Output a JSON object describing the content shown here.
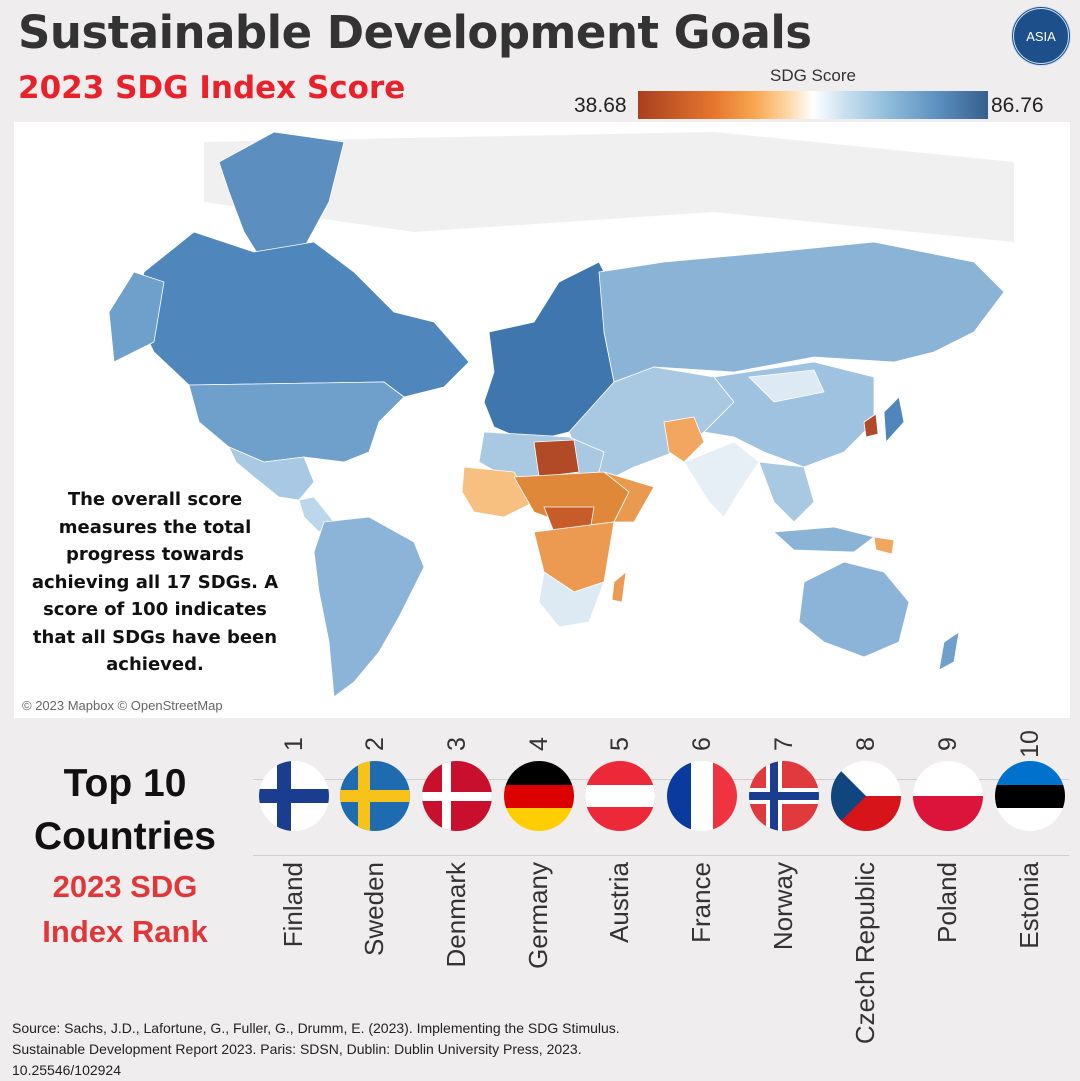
{
  "header": {
    "title": "Sustainable Development Goals",
    "subtitle": "2023 SDG Index Score",
    "logo_text": "ASIA"
  },
  "legend": {
    "title": "SDG Score",
    "min": "38.68",
    "max": "86.76",
    "colors": [
      "#a8401f",
      "#e6772f",
      "#fdd9a8",
      "#ffffff",
      "#8dbad9",
      "#365f8c"
    ]
  },
  "map": {
    "note": "The overall score measures the total progress towards achieving all 17 SDGs. A score of 100 indicates that all SDGs have been achieved.",
    "credit": "© 2023 Mapbox © OpenStreetMap"
  },
  "ranking": {
    "title_line1": "Top 10",
    "title_line2": "Countries",
    "subtitle_line1": "2023 SDG",
    "subtitle_line2": "Index Rank",
    "countries": [
      {
        "rank": "1",
        "name": "Finland"
      },
      {
        "rank": "2",
        "name": "Sweden"
      },
      {
        "rank": "3",
        "name": "Denmark"
      },
      {
        "rank": "4",
        "name": "Germany"
      },
      {
        "rank": "5",
        "name": "Austria"
      },
      {
        "rank": "6",
        "name": "France"
      },
      {
        "rank": "7",
        "name": "Norway"
      },
      {
        "rank": "8",
        "name": "Czech Republic"
      },
      {
        "rank": "9",
        "name": "Poland"
      },
      {
        "rank": "10",
        "name": "Estonia"
      }
    ]
  },
  "source": {
    "line1": "Source: Sachs, J.D., Lafortune, G., Fuller, G., Drumm, E. (2023). Implementing the SDG Stimulus.",
    "line2": "Sustainable Development Report 2023. Paris: SDSN, Dublin: Dublin University Press, 2023.",
    "line3": "10.25546/102924"
  }
}
